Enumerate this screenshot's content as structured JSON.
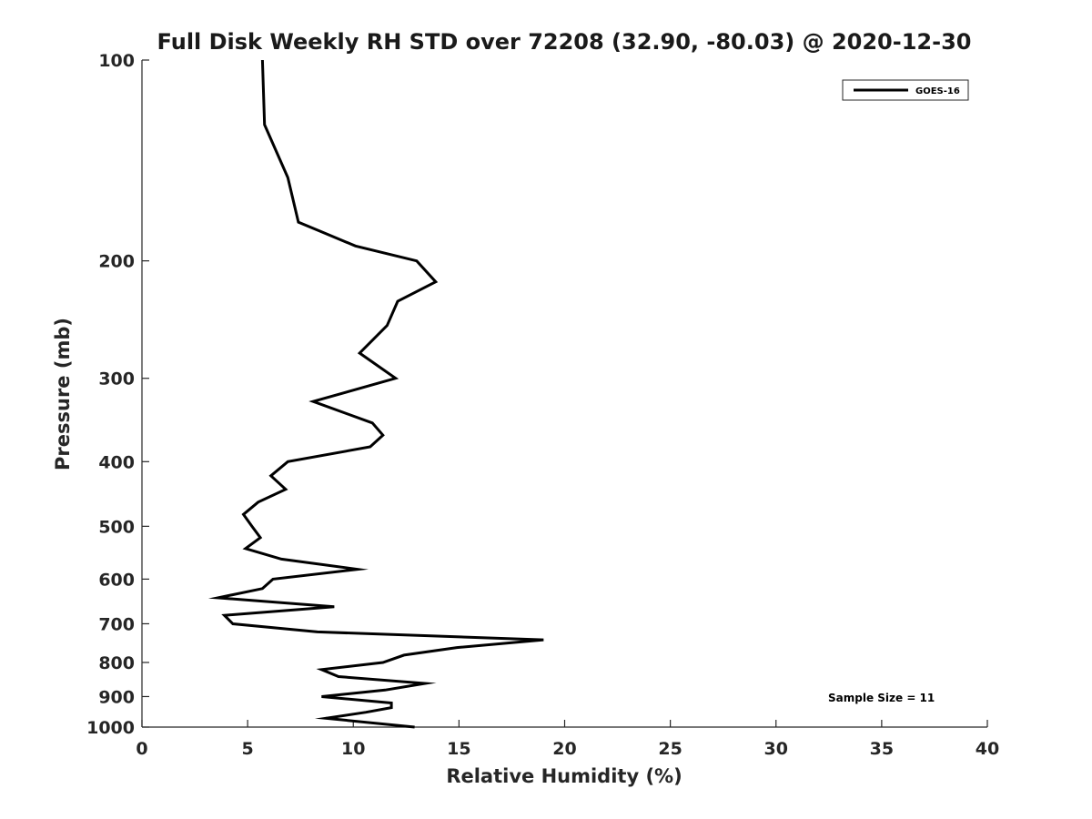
{
  "chart_data": {
    "type": "line",
    "title": "Full Disk Weekly RH STD over 72208 (32.90, -80.03) @ 2020-12-30",
    "xlabel": "Relative Humidity (%)",
    "ylabel": "Pressure (mb)",
    "xlim": [
      0,
      40
    ],
    "ylim": [
      100,
      1000
    ],
    "y_scale": "log",
    "y_reversed": true,
    "x_ticks": [
      0,
      5,
      10,
      15,
      20,
      25,
      30,
      35,
      40
    ],
    "y_ticks": [
      100,
      200,
      300,
      400,
      500,
      600,
      700,
      800,
      900,
      1000
    ],
    "grid": false,
    "legend_position": "top-right",
    "series": [
      {
        "name": "GOES-16",
        "color": "#000000",
        "points": [
          [
            5.7,
            100
          ],
          [
            5.8,
            125
          ],
          [
            6.9,
            150
          ],
          [
            7.4,
            175
          ],
          [
            10.1,
            190
          ],
          [
            13.0,
            200
          ],
          [
            13.9,
            215
          ],
          [
            12.1,
            230
          ],
          [
            11.6,
            250
          ],
          [
            10.3,
            275
          ],
          [
            12.0,
            300
          ],
          [
            8.1,
            325
          ],
          [
            10.9,
            350
          ],
          [
            11.4,
            365
          ],
          [
            10.8,
            380
          ],
          [
            6.9,
            400
          ],
          [
            6.1,
            420
          ],
          [
            6.8,
            440
          ],
          [
            5.5,
            460
          ],
          [
            4.8,
            480
          ],
          [
            5.2,
            500
          ],
          [
            5.6,
            520
          ],
          [
            4.9,
            540
          ],
          [
            6.6,
            560
          ],
          [
            10.2,
            580
          ],
          [
            6.2,
            600
          ],
          [
            5.7,
            620
          ],
          [
            3.6,
            640
          ],
          [
            9.1,
            660
          ],
          [
            3.9,
            680
          ],
          [
            4.3,
            700
          ],
          [
            8.3,
            720
          ],
          [
            19.0,
            740
          ],
          [
            14.9,
            760
          ],
          [
            12.4,
            780
          ],
          [
            11.4,
            800
          ],
          [
            8.5,
            820
          ],
          [
            9.3,
            840
          ],
          [
            13.4,
            860
          ],
          [
            11.5,
            880
          ],
          [
            8.5,
            900
          ],
          [
            11.8,
            920
          ],
          [
            11.8,
            935
          ],
          [
            10.6,
            950
          ],
          [
            8.7,
            970
          ],
          [
            12.9,
            1000
          ]
        ]
      }
    ],
    "annotation": "Sample Size = 11"
  }
}
